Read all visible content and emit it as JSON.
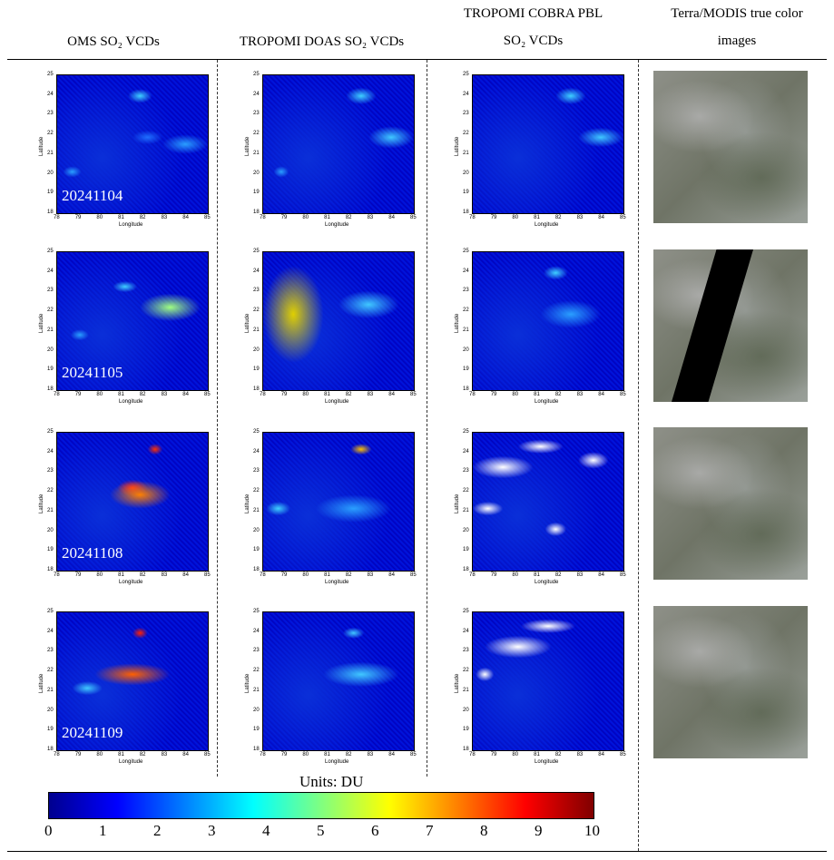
{
  "headers": {
    "oms": "OMS SO₂ VCDs",
    "doas": "TROPOMI DOAS SO₂ VCDs",
    "cobra_line1": "TROPOMI COBRA PBL",
    "cobra_line2": "SO₂ VCDs",
    "modis_line1": "Terra/MODIS true color",
    "modis_line2": "images"
  },
  "axes": {
    "xlabel": "Longitude",
    "ylabel": "Latitude",
    "xticks": [
      "78",
      "79",
      "80",
      "81",
      "82",
      "83",
      "84",
      "85"
    ],
    "yticks": [
      "25",
      "24",
      "23",
      "22",
      "21",
      "20",
      "19",
      "18"
    ]
  },
  "dates": [
    "20241104",
    "20241105",
    "20241108",
    "20241109"
  ],
  "colorbar": {
    "title": "Units: DU",
    "ticks": [
      "0",
      "1",
      "2",
      "3",
      "4",
      "5",
      "6",
      "7",
      "8",
      "9",
      "10"
    ],
    "colors": [
      "#00008f",
      "#0000ff",
      "#0080ff",
      "#00ffff",
      "#80ff80",
      "#ffff00",
      "#ff8000",
      "#ff0000",
      "#800000"
    ]
  }
}
